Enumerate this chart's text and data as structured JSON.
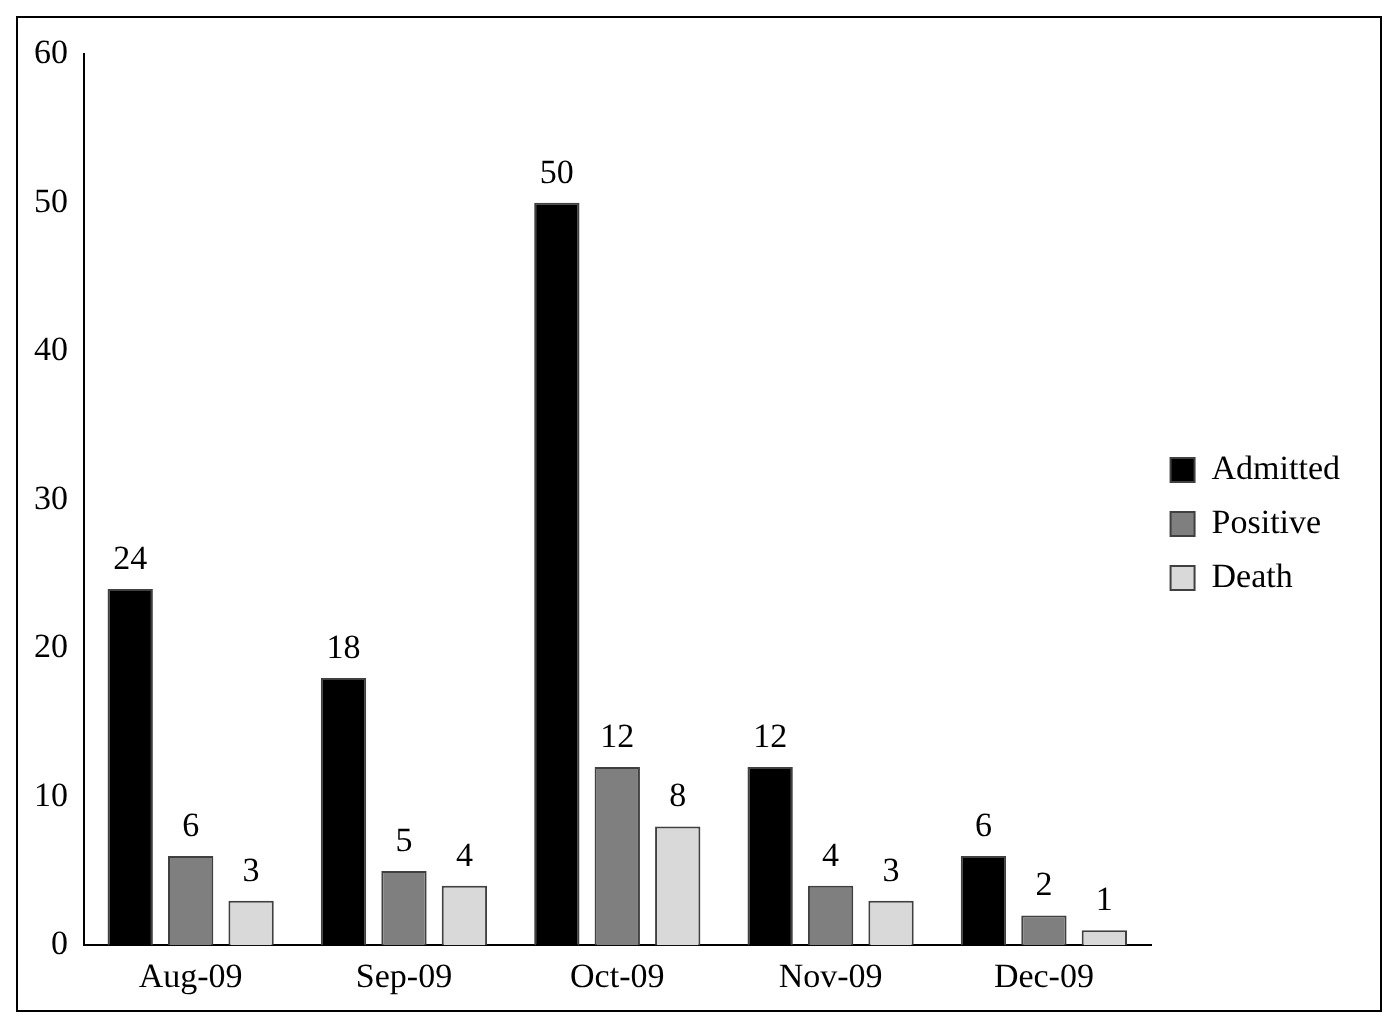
{
  "chart_data": {
    "type": "bar",
    "categories": [
      "Aug-09",
      "Sep-09",
      "Oct-09",
      "Nov-09",
      "Dec-09"
    ],
    "series": [
      {
        "name": "Admitted",
        "color": "#000000",
        "values": [
          24,
          18,
          50,
          12,
          6
        ]
      },
      {
        "name": "Positive",
        "color": "#7f7f7f",
        "values": [
          6,
          5,
          12,
          4,
          2
        ]
      },
      {
        "name": "Death",
        "color": "#d9d9d9",
        "values": [
          3,
          4,
          8,
          3,
          1
        ]
      }
    ],
    "ylim": [
      0,
      60
    ],
    "yticks": [
      0,
      10,
      20,
      30,
      40,
      50,
      60
    ],
    "grid": false,
    "legend": "right",
    "data_labels": true
  }
}
